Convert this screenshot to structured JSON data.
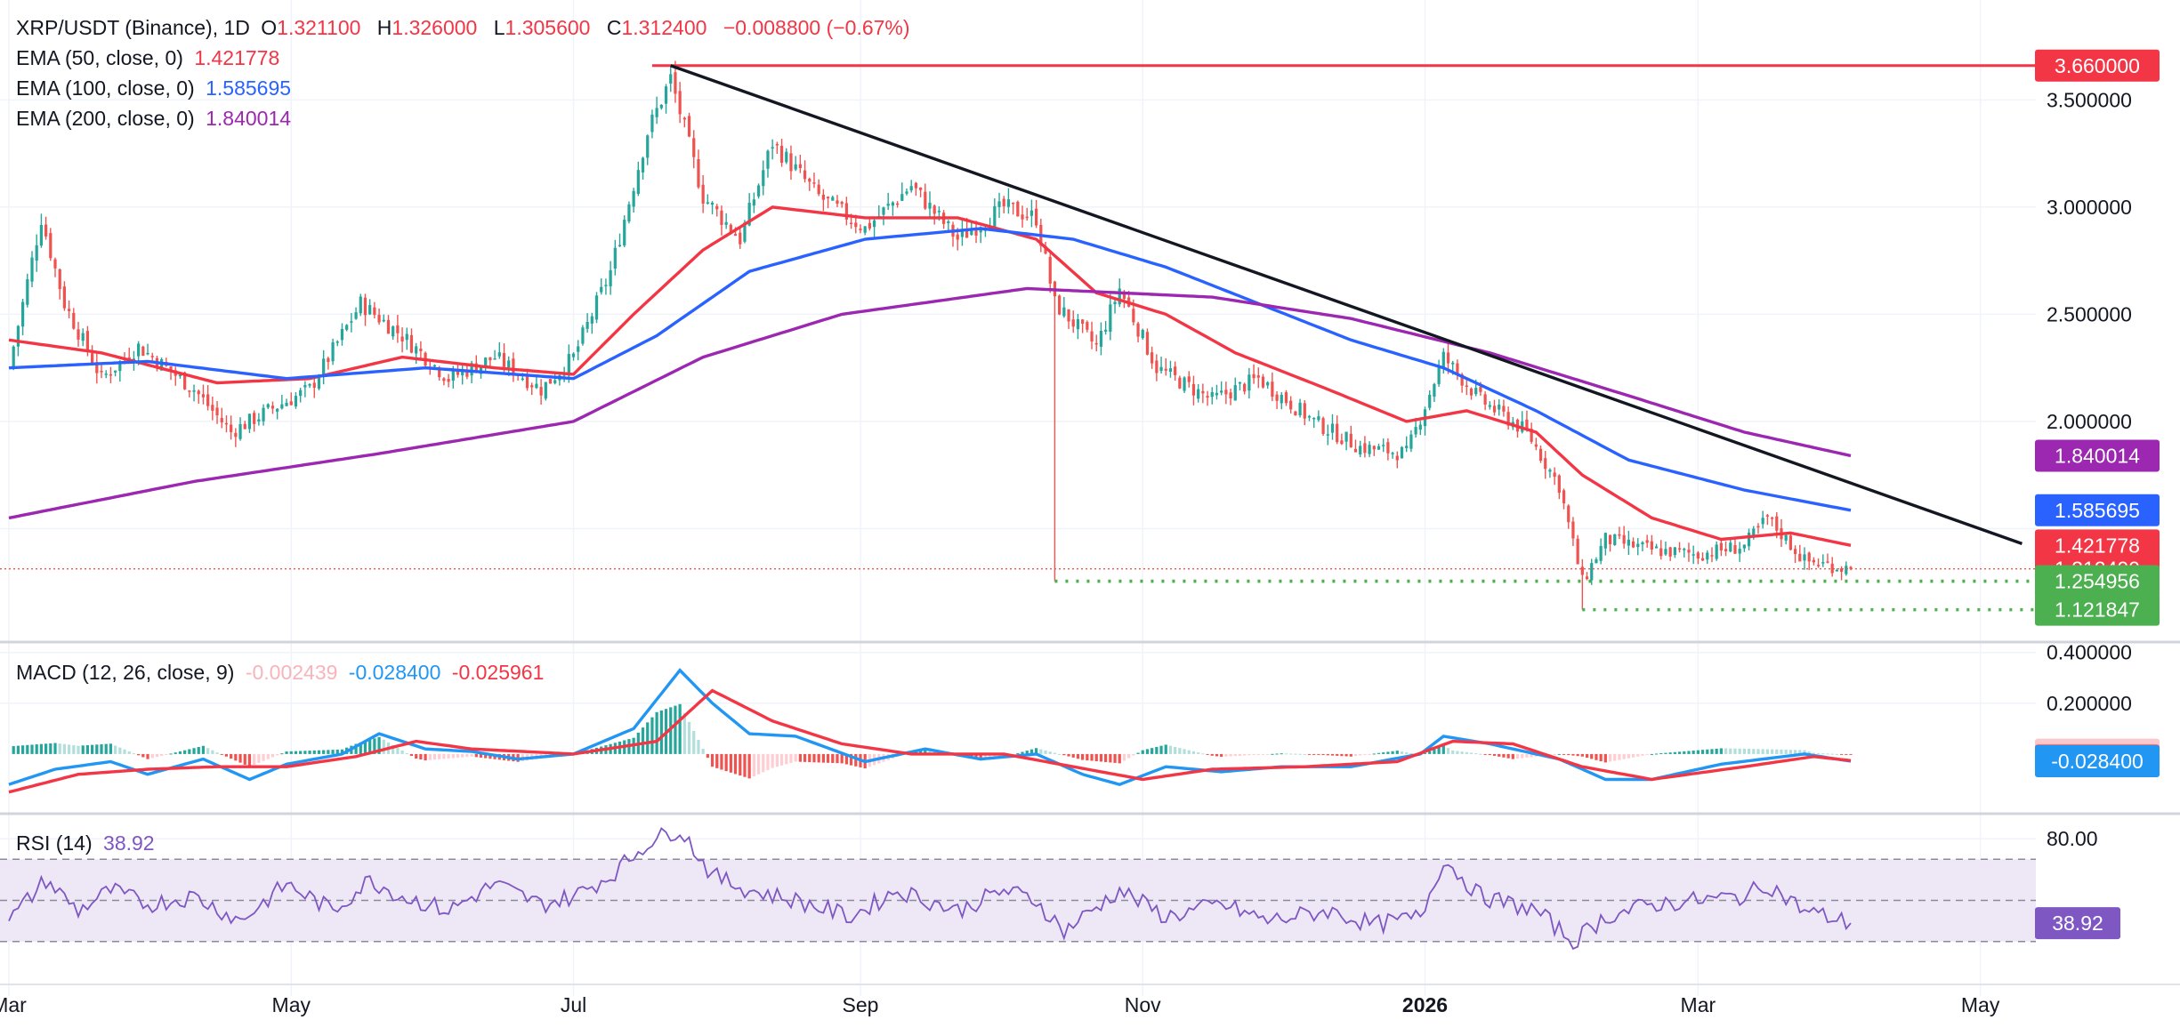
{
  "colors": {
    "up": "#26a69a",
    "down": "#ef5350",
    "ema50": "#f23645",
    "ema100": "#2962ff",
    "ema200": "#9c27b0",
    "trendline": "#131722",
    "resistance": "#f23645",
    "support": "#4caf50",
    "macd": "#2196f3",
    "signal": "#f23645",
    "rsi": "#7e57c2",
    "rsi_band": "#ede7f6",
    "grid": "#f0f3fa"
  },
  "header": {
    "symbol": "XRP/USDT (Binance), 1D",
    "o_label": "O",
    "o_value": "1.321100",
    "h_label": "H",
    "h_value": "1.326000",
    "l_label": "L",
    "l_value": "1.305600",
    "c_label": "C",
    "c_value": "1.312400",
    "change": "−0.008800 (−0.67%)"
  },
  "ema_legend": [
    {
      "label": "EMA (50, close, 0)",
      "value": "1.421778"
    },
    {
      "label": "EMA (100, close, 0)",
      "value": "1.585695"
    },
    {
      "label": "EMA (200, close, 0)",
      "value": "1.840014"
    }
  ],
  "macd_legend": {
    "label": "MACD (12, 26, close, 9)",
    "hist": "-0.002439",
    "macd": "-0.028400",
    "signal": "-0.025961"
  },
  "rsi_legend": {
    "label": "RSI (14)",
    "value": "38.92"
  },
  "chart_data": [
    {
      "type": "candlestick",
      "title": "XRP/USDT (Binance), 1D",
      "x_labels": [
        "Mar",
        "May",
        "Jul",
        "Sep",
        "Nov",
        "2026",
        "Mar",
        "May"
      ],
      "x_label_days": [
        0,
        61,
        122,
        184,
        245,
        306,
        365,
        426
      ],
      "y_ticks": [
        "3.500000",
        "3.000000",
        "2.500000",
        "2.000000"
      ],
      "y_tick_values": [
        3.5,
        3.0,
        2.5,
        2.0
      ],
      "ylim": [
        1.0,
        3.8
      ],
      "price_path": [
        [
          0,
          2.25
        ],
        [
          7,
          2.95
        ],
        [
          12,
          2.55
        ],
        [
          20,
          2.2
        ],
        [
          28,
          2.35
        ],
        [
          40,
          2.15
        ],
        [
          48,
          1.95
        ],
        [
          56,
          2.05
        ],
        [
          65,
          2.15
        ],
        [
          76,
          2.55
        ],
        [
          85,
          2.4
        ],
        [
          95,
          2.2
        ],
        [
          105,
          2.3
        ],
        [
          115,
          2.15
        ],
        [
          122,
          2.3
        ],
        [
          130,
          2.7
        ],
        [
          138,
          3.35
        ],
        [
          143,
          3.6
        ],
        [
          150,
          3.05
        ],
        [
          158,
          2.85
        ],
        [
          165,
          3.3
        ],
        [
          175,
          3.05
        ],
        [
          185,
          2.9
        ],
        [
          195,
          3.1
        ],
        [
          205,
          2.85
        ],
        [
          215,
          3.0
        ],
        [
          222,
          2.95
        ],
        [
          226,
          2.55
        ],
        [
          235,
          2.35
        ],
        [
          240,
          2.62
        ],
        [
          248,
          2.25
        ],
        [
          260,
          2.1
        ],
        [
          270,
          2.2
        ],
        [
          282,
          2.0
        ],
        [
          292,
          1.88
        ],
        [
          302,
          1.85
        ],
        [
          310,
          2.3
        ],
        [
          318,
          2.1
        ],
        [
          328,
          1.95
        ],
        [
          335,
          1.7
        ],
        [
          340,
          1.25
        ],
        [
          345,
          1.45
        ],
        [
          355,
          1.4
        ],
        [
          365,
          1.38
        ],
        [
          375,
          1.42
        ],
        [
          380,
          1.55
        ],
        [
          388,
          1.35
        ],
        [
          398,
          1.3124
        ]
      ],
      "candle_count": 398,
      "overlay_series": [
        {
          "name": "EMA (50, close, 0)",
          "last": 1.421778,
          "path": [
            [
              0,
              2.38
            ],
            [
              20,
              2.32
            ],
            [
              45,
              2.18
            ],
            [
              65,
              2.2
            ],
            [
              85,
              2.3
            ],
            [
              105,
              2.25
            ],
            [
              122,
              2.22
            ],
            [
              135,
              2.5
            ],
            [
              150,
              2.8
            ],
            [
              165,
              3.0
            ],
            [
              185,
              2.95
            ],
            [
              205,
              2.95
            ],
            [
              222,
              2.85
            ],
            [
              235,
              2.6
            ],
            [
              250,
              2.5
            ],
            [
              265,
              2.32
            ],
            [
              285,
              2.15
            ],
            [
              302,
              2.0
            ],
            [
              315,
              2.05
            ],
            [
              330,
              1.95
            ],
            [
              340,
              1.75
            ],
            [
              355,
              1.55
            ],
            [
              370,
              1.45
            ],
            [
              385,
              1.48
            ],
            [
              398,
              1.421778
            ]
          ]
        },
        {
          "name": "EMA (100, close, 0)",
          "last": 1.585695,
          "path": [
            [
              0,
              2.25
            ],
            [
              30,
              2.28
            ],
            [
              60,
              2.2
            ],
            [
              90,
              2.25
            ],
            [
              122,
              2.2
            ],
            [
              140,
              2.4
            ],
            [
              160,
              2.7
            ],
            [
              185,
              2.85
            ],
            [
              210,
              2.9
            ],
            [
              230,
              2.85
            ],
            [
              250,
              2.72
            ],
            [
              270,
              2.55
            ],
            [
              290,
              2.38
            ],
            [
              310,
              2.25
            ],
            [
              330,
              2.05
            ],
            [
              350,
              1.82
            ],
            [
              375,
              1.68
            ],
            [
              398,
              1.585695
            ]
          ]
        },
        {
          "name": "EMA (200, close, 0)",
          "last": 1.840014,
          "path": [
            [
              0,
              1.55
            ],
            [
              40,
              1.72
            ],
            [
              80,
              1.85
            ],
            [
              122,
              2.0
            ],
            [
              150,
              2.3
            ],
            [
              180,
              2.5
            ],
            [
              220,
              2.62
            ],
            [
              260,
              2.58
            ],
            [
              290,
              2.48
            ],
            [
              320,
              2.32
            ],
            [
              350,
              2.12
            ],
            [
              375,
              1.95
            ],
            [
              398,
              1.840014
            ]
          ]
        }
      ],
      "annotations": [
        {
          "type": "hline",
          "name": "resistance",
          "value": 3.66,
          "label": "3.660000",
          "x_start": 139
        },
        {
          "type": "trendline",
          "from": [
            143,
            3.66
          ],
          "to": [
            435,
            1.43
          ]
        },
        {
          "type": "hline-dotted",
          "name": "support-1",
          "value": 1.254956,
          "label": "1.254956",
          "x_start": 226
        },
        {
          "type": "hline-dotted",
          "name": "support-2",
          "value": 1.121847,
          "label": "1.121847",
          "x_start": 340
        },
        {
          "type": "hline-dotted",
          "name": "last-price",
          "value": 1.3124,
          "label": "1.312400",
          "x_start": 0
        }
      ],
      "price_badges": [
        {
          "label": "3.660000",
          "value": 3.66,
          "color": "#f23645"
        },
        {
          "label": "1.840014",
          "value": 1.840014,
          "color": "#9c27b0"
        },
        {
          "label": "1.585695",
          "value": 1.585695,
          "color": "#2962ff"
        },
        {
          "label": "1.421778",
          "value": 1.421778,
          "color": "#f23645"
        },
        {
          "label": "1.312400",
          "value": 1.3124,
          "color": "#f23645"
        },
        {
          "label": "1.254956",
          "value": 1.254956,
          "color": "#4caf50"
        },
        {
          "label": "1.121847",
          "value": 1.121847,
          "color": "#4caf50"
        }
      ]
    },
    {
      "type": "macd",
      "title": "MACD (12, 26, close, 9)",
      "y_ticks": [
        "0.400000",
        "0.200000"
      ],
      "y_tick_values": [
        0.4,
        0.2
      ],
      "ylim": [
        -0.2,
        0.42
      ],
      "macd_path": [
        [
          0,
          -0.12
        ],
        [
          10,
          -0.06
        ],
        [
          22,
          -0.03
        ],
        [
          30,
          -0.08
        ],
        [
          42,
          -0.02
        ],
        [
          52,
          -0.1
        ],
        [
          60,
          -0.04
        ],
        [
          72,
          0.0
        ],
        [
          80,
          0.08
        ],
        [
          90,
          0.02
        ],
        [
          100,
          0.01
        ],
        [
          110,
          -0.02
        ],
        [
          122,
          0.0
        ],
        [
          135,
          0.1
        ],
        [
          145,
          0.33
        ],
        [
          152,
          0.2
        ],
        [
          160,
          0.08
        ],
        [
          170,
          0.07
        ],
        [
          185,
          -0.03
        ],
        [
          198,
          0.02
        ],
        [
          210,
          -0.02
        ],
        [
          222,
          0.0
        ],
        [
          232,
          -0.08
        ],
        [
          240,
          -0.12
        ],
        [
          250,
          -0.05
        ],
        [
          262,
          -0.07
        ],
        [
          275,
          -0.05
        ],
        [
          290,
          -0.05
        ],
        [
          305,
          0.0
        ],
        [
          310,
          0.07
        ],
        [
          320,
          0.04
        ],
        [
          335,
          -0.02
        ],
        [
          345,
          -0.1
        ],
        [
          355,
          -0.1
        ],
        [
          370,
          -0.04
        ],
        [
          388,
          0.0
        ],
        [
          398,
          -0.0284
        ]
      ],
      "signal_path": [
        [
          0,
          -0.15
        ],
        [
          15,
          -0.08
        ],
        [
          30,
          -0.06
        ],
        [
          45,
          -0.05
        ],
        [
          60,
          -0.05
        ],
        [
          75,
          -0.01
        ],
        [
          88,
          0.05
        ],
        [
          100,
          0.02
        ],
        [
          122,
          0.0
        ],
        [
          140,
          0.05
        ],
        [
          152,
          0.25
        ],
        [
          165,
          0.13
        ],
        [
          180,
          0.04
        ],
        [
          195,
          0.0
        ],
        [
          215,
          0.0
        ],
        [
          230,
          -0.05
        ],
        [
          245,
          -0.1
        ],
        [
          260,
          -0.06
        ],
        [
          280,
          -0.05
        ],
        [
          300,
          -0.03
        ],
        [
          312,
          0.05
        ],
        [
          325,
          0.04
        ],
        [
          340,
          -0.05
        ],
        [
          355,
          -0.1
        ],
        [
          375,
          -0.05
        ],
        [
          390,
          -0.01
        ],
        [
          398,
          -0.025961
        ]
      ],
      "last": {
        "hist": -0.002439,
        "macd": -0.0284,
        "signal": -0.025961
      },
      "price_badges": [
        {
          "label": "-0.002439",
          "value": -0.002439,
          "color": "#f8c8cc"
        },
        {
          "label": "-0.025961",
          "value": -0.025961,
          "color": "#f23645"
        },
        {
          "label": "-0.028400",
          "value": -0.0284,
          "color": "#2196f3"
        }
      ]
    },
    {
      "type": "rsi",
      "title": "RSI (14)",
      "y_ticks": [
        "80.00"
      ],
      "y_tick_values": [
        80
      ],
      "ylim": [
        10,
        90
      ],
      "bands": [
        70,
        50,
        30
      ],
      "path": [
        [
          0,
          40
        ],
        [
          8,
          60
        ],
        [
          15,
          45
        ],
        [
          22,
          55
        ],
        [
          30,
          48
        ],
        [
          40,
          52
        ],
        [
          50,
          40
        ],
        [
          60,
          58
        ],
        [
          70,
          45
        ],
        [
          78,
          60
        ],
        [
          85,
          52
        ],
        [
          95,
          45
        ],
        [
          105,
          58
        ],
        [
          115,
          48
        ],
        [
          122,
          52
        ],
        [
          130,
          62
        ],
        [
          138,
          78
        ],
        [
          145,
          85
        ],
        [
          152,
          62
        ],
        [
          160,
          55
        ],
        [
          170,
          50
        ],
        [
          182,
          42
        ],
        [
          192,
          55
        ],
        [
          205,
          45
        ],
        [
          215,
          55
        ],
        [
          222,
          50
        ],
        [
          228,
          35
        ],
        [
          240,
          55
        ],
        [
          250,
          42
        ],
        [
          262,
          48
        ],
        [
          272,
          40
        ],
        [
          285,
          45
        ],
        [
          295,
          38
        ],
        [
          305,
          42
        ],
        [
          310,
          70
        ],
        [
          318,
          52
        ],
        [
          330,
          45
        ],
        [
          338,
          30
        ],
        [
          345,
          42
        ],
        [
          355,
          48
        ],
        [
          365,
          50
        ],
        [
          375,
          52
        ],
        [
          380,
          58
        ],
        [
          388,
          45
        ],
        [
          398,
          38.92
        ]
      ],
      "price_badges": [
        {
          "label": "38.92",
          "value": 38.92,
          "color": "#7e57c2"
        }
      ]
    }
  ]
}
